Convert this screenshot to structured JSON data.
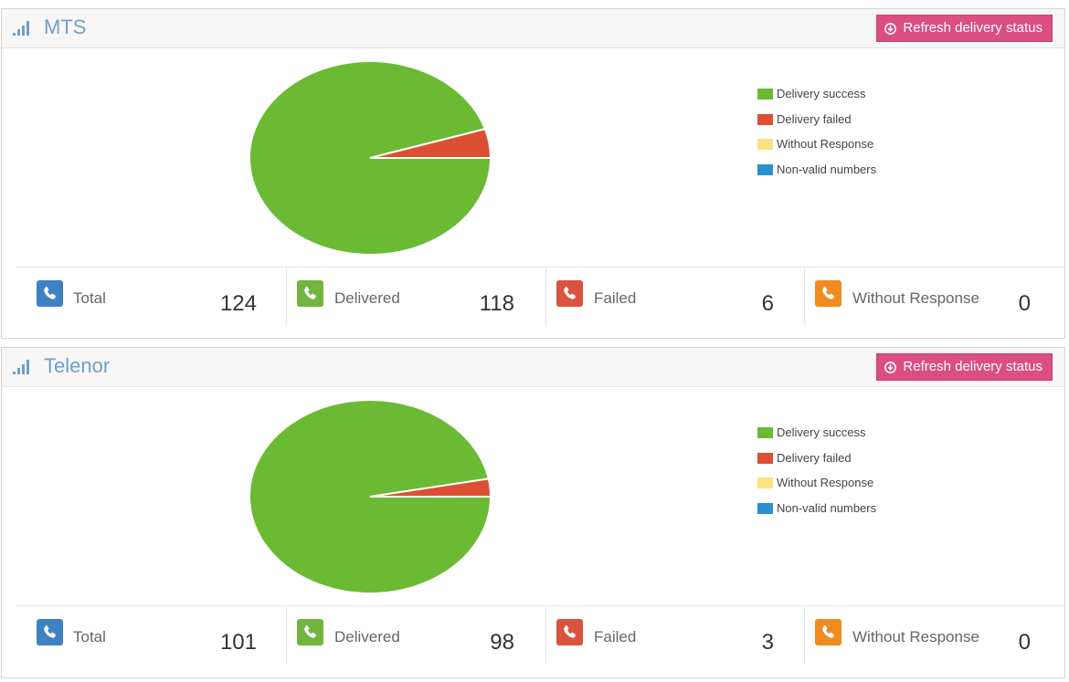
{
  "panels": [
    {
      "title": "MTS",
      "refresh_label": "Refresh delivery status",
      "legend": [
        {
          "label": "Delivery success",
          "color": "#6aba33"
        },
        {
          "label": "Delivery failed",
          "color": "#dd4f32"
        },
        {
          "label": "Without Response",
          "color": "#fbe281"
        },
        {
          "label": "Non-valid numbers",
          "color": "#2a8fd0"
        }
      ],
      "stats": [
        {
          "label": "Total",
          "value": "124",
          "color": "#3f82c4",
          "icon": "phone-icon"
        },
        {
          "label": "Delivered",
          "value": "118",
          "color": "#72b43e",
          "icon": "phone-icon"
        },
        {
          "label": "Failed",
          "value": "6",
          "color": "#d9533f",
          "icon": "phone-icon"
        },
        {
          "label": "Without Response",
          "value": "0",
          "color": "#ef8b1f",
          "icon": "phone-icon"
        }
      ],
      "chart_data": {
        "type": "pie",
        "categories": [
          "Delivery success",
          "Delivery failed",
          "Without Response",
          "Non-valid numbers"
        ],
        "values": [
          118,
          6,
          0,
          0
        ],
        "colors": [
          "#6aba33",
          "#dd4f32",
          "#fbe281",
          "#2a8fd0"
        ],
        "legend": "right"
      }
    },
    {
      "title": "Telenor",
      "refresh_label": "Refresh delivery status",
      "legend": [
        {
          "label": "Delivery success",
          "color": "#6aba33"
        },
        {
          "label": "Delivery failed",
          "color": "#dd4f32"
        },
        {
          "label": "Without Response",
          "color": "#fbe281"
        },
        {
          "label": "Non-valid numbers",
          "color": "#2a8fd0"
        }
      ],
      "stats": [
        {
          "label": "Total",
          "value": "101",
          "color": "#3f82c4",
          "icon": "phone-icon"
        },
        {
          "label": "Delivered",
          "value": "98",
          "color": "#72b43e",
          "icon": "phone-icon"
        },
        {
          "label": "Failed",
          "value": "3",
          "color": "#d9533f",
          "icon": "phone-icon"
        },
        {
          "label": "Without Response",
          "value": "0",
          "color": "#ef8b1f",
          "icon": "phone-icon"
        }
      ],
      "chart_data": {
        "type": "pie",
        "categories": [
          "Delivery success",
          "Delivery failed",
          "Without Response",
          "Non-valid numbers"
        ],
        "values": [
          98,
          3,
          0,
          0
        ],
        "colors": [
          "#6aba33",
          "#dd4f32",
          "#fbe281",
          "#2a8fd0"
        ],
        "legend": "right"
      }
    }
  ],
  "icons": {
    "signal": "signal-icon",
    "refresh": "refresh-icon",
    "phone": "phone-icon"
  }
}
